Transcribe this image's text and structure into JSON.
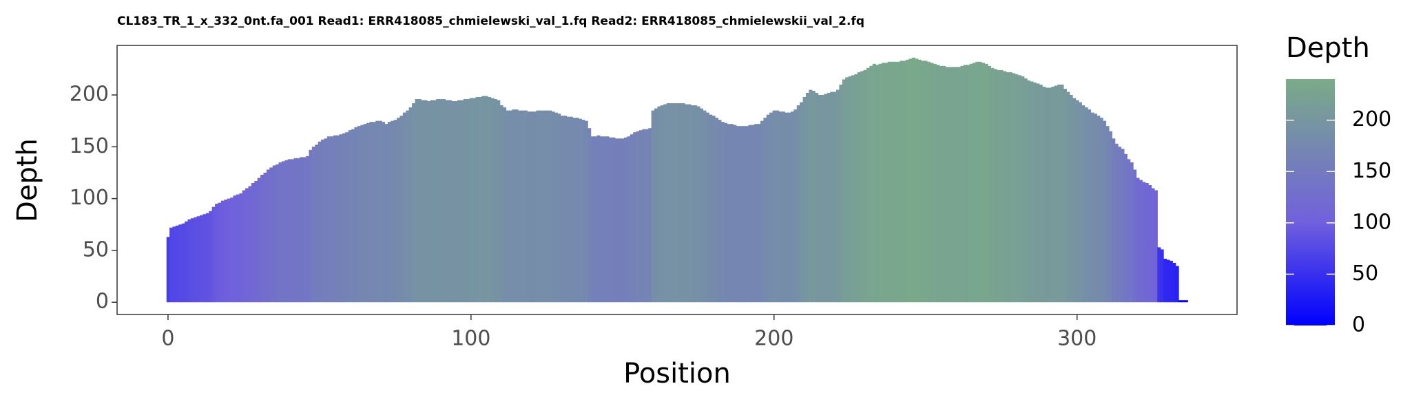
{
  "chart_data": {
    "type": "bar",
    "title": "CL183_TR_1_x_332_0nt.fa_001 Read1: ERR418085_chmielewski_val_1.fq Read2: ERR418085_chmielewskii_val_2.fq",
    "x_label": "Position",
    "y_label": "Depth",
    "legend_title": "Depth",
    "x": [
      0,
      1,
      2,
      3,
      4,
      5,
      6,
      7,
      8,
      9,
      10,
      11,
      12,
      13,
      14,
      15,
      16,
      17,
      18,
      19,
      20,
      21,
      22,
      23,
      24,
      25,
      26,
      27,
      28,
      29,
      30,
      31,
      32,
      33,
      34,
      35,
      36,
      37,
      38,
      39,
      40,
      41,
      42,
      43,
      44,
      45,
      46,
      47,
      48,
      49,
      50,
      51,
      52,
      53,
      54,
      55,
      56,
      57,
      58,
      59,
      60,
      61,
      62,
      63,
      64,
      65,
      66,
      67,
      68,
      69,
      70,
      71,
      72,
      73,
      74,
      75,
      76,
      77,
      78,
      79,
      80,
      81,
      82,
      83,
      84,
      85,
      86,
      87,
      88,
      89,
      90,
      91,
      92,
      93,
      94,
      95,
      96,
      97,
      98,
      99,
      100,
      101,
      102,
      103,
      104,
      105,
      106,
      107,
      108,
      109,
      110,
      111,
      112,
      113,
      114,
      115,
      116,
      117,
      118,
      119,
      120,
      121,
      122,
      123,
      124,
      125,
      126,
      127,
      128,
      129,
      130,
      131,
      132,
      133,
      134,
      135,
      136,
      137,
      138,
      139,
      140,
      141,
      142,
      143,
      144,
      145,
      146,
      147,
      148,
      149,
      150,
      151,
      152,
      153,
      154,
      155,
      156,
      157,
      158,
      159,
      160,
      161,
      162,
      163,
      164,
      165,
      166,
      167,
      168,
      169,
      170,
      171,
      172,
      173,
      174,
      175,
      176,
      177,
      178,
      179,
      180,
      181,
      182,
      183,
      184,
      185,
      186,
      187,
      188,
      189,
      190,
      191,
      192,
      193,
      194,
      195,
      196,
      197,
      198,
      199,
      200,
      201,
      202,
      203,
      204,
      205,
      206,
      207,
      208,
      209,
      210,
      211,
      212,
      213,
      214,
      215,
      216,
      217,
      218,
      219,
      220,
      221,
      222,
      223,
      224,
      225,
      226,
      227,
      228,
      229,
      230,
      231,
      232,
      233,
      234,
      235,
      236,
      237,
      238,
      239,
      240,
      241,
      242,
      243,
      244,
      245,
      246,
      247,
      248,
      249,
      250,
      251,
      252,
      253,
      254,
      255,
      256,
      257,
      258,
      259,
      260,
      261,
      262,
      263,
      264,
      265,
      266,
      267,
      268,
      269,
      270,
      271,
      272,
      273,
      274,
      275,
      276,
      277,
      278,
      279,
      280,
      281,
      282,
      283,
      284,
      285,
      286,
      287,
      288,
      289,
      290,
      291,
      292,
      293,
      294,
      295,
      296,
      297,
      298,
      299,
      300,
      301,
      302,
      303,
      304,
      305,
      306,
      307,
      308,
      309,
      310,
      311,
      312,
      313,
      314,
      315,
      316,
      317,
      318,
      319,
      320,
      321,
      322,
      323,
      324,
      325,
      326,
      327,
      328,
      329,
      330,
      331,
      332,
      333,
      334,
      335,
      336
    ],
    "values": [
      63,
      72,
      73,
      74,
      75,
      76,
      78,
      80,
      81,
      82,
      83,
      84,
      85,
      86,
      88,
      92,
      95,
      96,
      98,
      99,
      100,
      101,
      103,
      104,
      105,
      108,
      110,
      112,
      115,
      117,
      120,
      123,
      125,
      128,
      130,
      132,
      133,
      135,
      136,
      137,
      138,
      138,
      139,
      139,
      140,
      140,
      141,
      147,
      150,
      152,
      155,
      157,
      158,
      160,
      160,
      161,
      161,
      162,
      163,
      164,
      166,
      167,
      169,
      170,
      171,
      172,
      173,
      174,
      174,
      175,
      175,
      174,
      172,
      174,
      175,
      176,
      178,
      180,
      183,
      185,
      188,
      192,
      196,
      196,
      195,
      195,
      194,
      195,
      195,
      196,
      196,
      196,
      195,
      195,
      194,
      194,
      195,
      195,
      196,
      196,
      197,
      197,
      198,
      198,
      199,
      199,
      198,
      197,
      196,
      195,
      190,
      188,
      185,
      185,
      186,
      186,
      185,
      185,
      185,
      184,
      184,
      184,
      185,
      185,
      185,
      185,
      185,
      184,
      183,
      182,
      180,
      180,
      179,
      179,
      178,
      178,
      177,
      176,
      175,
      168,
      160,
      160,
      161,
      160,
      160,
      160,
      159,
      159,
      158,
      158,
      158,
      159,
      160,
      162,
      164,
      165,
      166,
      167,
      167,
      168,
      185,
      187,
      189,
      190,
      191,
      192,
      192,
      192,
      192,
      192,
      192,
      191,
      191,
      190,
      190,
      189,
      187,
      185,
      183,
      181,
      180,
      178,
      176,
      174,
      173,
      172,
      172,
      171,
      170,
      170,
      170,
      170,
      171,
      171,
      172,
      172,
      175,
      178,
      181,
      183,
      185,
      185,
      184,
      184,
      183,
      183,
      184,
      186,
      190,
      193,
      198,
      202,
      205,
      204,
      202,
      200,
      200,
      201,
      202,
      203,
      203,
      205,
      210,
      215,
      217,
      218,
      219,
      220,
      222,
      223,
      224,
      226,
      228,
      230,
      229,
      230,
      231,
      231,
      232,
      232,
      232,
      232,
      233,
      233,
      234,
      235,
      236,
      235,
      234,
      233,
      233,
      232,
      231,
      230,
      229,
      228,
      228,
      227,
      227,
      227,
      227,
      227,
      228,
      229,
      229,
      230,
      231,
      232,
      232,
      231,
      230,
      228,
      226,
      225,
      224,
      224,
      223,
      222,
      222,
      221,
      220,
      219,
      218,
      216,
      214,
      213,
      212,
      211,
      210,
      208,
      207,
      207,
      208,
      209,
      210,
      210,
      206,
      203,
      200,
      197,
      195,
      193,
      190,
      188,
      186,
      183,
      182,
      180,
      178,
      175,
      170,
      165,
      158,
      153,
      150,
      148,
      143,
      138,
      135,
      128,
      120,
      118,
      116,
      115,
      113,
      110,
      108,
      53,
      51,
      42,
      41,
      40,
      38,
      35,
      2,
      2,
      2
    ],
    "xlim": [
      -16.8,
      352.8
    ],
    "xticks": [
      0,
      100,
      200,
      300
    ],
    "ylim": [
      -11.8,
      247.8
    ],
    "yticks": [
      0,
      50,
      100,
      150,
      200
    ],
    "clim": [
      0,
      240
    ],
    "cticks": [
      0,
      50,
      100,
      150,
      200
    ],
    "color_stops": [
      {
        "value": 0,
        "color": "#0000ff"
      },
      {
        "value": 100,
        "color": "#7060dd"
      },
      {
        "value": 240,
        "color": "#7aab88"
      }
    ],
    "grid": false,
    "legend": "right"
  }
}
